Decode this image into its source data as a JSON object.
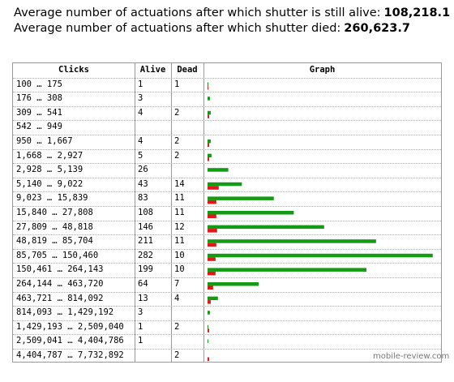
{
  "header": {
    "alive_label": "Average number of actuations after which shutter is still alive:",
    "alive_value": "108,218.1",
    "died_label": "Average number of actuations after which shutter died:",
    "died_value": "260,623.7"
  },
  "table": {
    "columns": [
      "Clicks",
      "Alive",
      "Dead",
      "Graph"
    ],
    "rows": [
      [
        "100 … 175",
        1,
        1
      ],
      [
        "176 … 308",
        3,
        null
      ],
      [
        "309 … 541",
        4,
        2
      ],
      [
        "542 … 949",
        null,
        null
      ],
      [
        "950 … 1,667",
        4,
        2
      ],
      [
        "1,668 … 2,927",
        5,
        2
      ],
      [
        "2,928 … 5,139",
        26,
        null
      ],
      [
        "5,140 … 9,022",
        43,
        14
      ],
      [
        "9,023 … 15,839",
        83,
        11
      ],
      [
        "15,840 … 27,808",
        108,
        11
      ],
      [
        "27,809 … 48,818",
        146,
        12
      ],
      [
        "48,819 … 85,704",
        211,
        11
      ],
      [
        "85,705 … 150,460",
        282,
        10
      ],
      [
        "150,461 … 264,143",
        199,
        10
      ],
      [
        "264,144 … 463,720",
        64,
        7
      ],
      [
        "463,721 … 814,092",
        13,
        4
      ],
      [
        "814,093 … 1,429,192",
        3,
        null
      ],
      [
        "1,429,193 … 2,509,040",
        1,
        2
      ],
      [
        "2,509,041 … 4,404,786",
        1,
        null
      ],
      [
        "4,404,787 … 7,732,892",
        null,
        2
      ]
    ],
    "alive_color": "#159a15",
    "dead_color": "#e01818"
  },
  "watermark": "mobile-review.com"
}
